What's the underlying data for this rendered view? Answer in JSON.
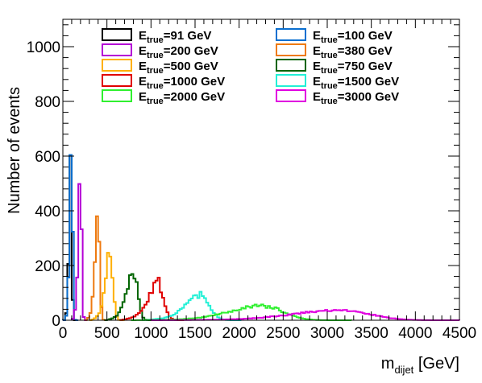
{
  "chart_data": {
    "type": "histogram",
    "title": "",
    "xlabel": {
      "main": "m",
      "sub": "dijet",
      "unit": " [GeV]"
    },
    "ylabel": "Number of events",
    "xlim": [
      0,
      4500
    ],
    "ylim": [
      0,
      1100
    ],
    "x_ticks": [
      0,
      500,
      1000,
      1500,
      2000,
      2500,
      3000,
      3500,
      4000,
      4500
    ],
    "y_ticks": [
      0,
      200,
      400,
      600,
      800,
      1000
    ],
    "bin_width": 25,
    "grid": false,
    "legend": {
      "placement": "top",
      "columns": 2
    },
    "series": [
      {
        "label_main": "E",
        "label_sub": "true",
        "label_rest": "=91 GeV",
        "color": "#000000",
        "peak": 91,
        "width": 20,
        "height": 510,
        "lowtail": 40,
        "hightail": 0
      },
      {
        "label_main": "E",
        "label_sub": "true",
        "label_rest": "=100 GeV",
        "color": "#0a6fd0",
        "peak": 100,
        "width": 20,
        "height": 680,
        "lowtail": 60,
        "hightail": 0
      },
      {
        "label_main": "E",
        "label_sub": "true",
        "label_rest": "=200 GeV",
        "color": "#b400d6",
        "peak": 200,
        "width": 25,
        "height": 470,
        "lowtail": 40,
        "hightail": 0
      },
      {
        "label_main": "E",
        "label_sub": "true",
        "label_rest": "=380 GeV",
        "color": "#ee7a10",
        "peak": 400,
        "width": 35,
        "height": 335,
        "lowtail": 35,
        "hightail": 0
      },
      {
        "label_main": "E",
        "label_sub": "true",
        "label_rest": "=500 GeV",
        "color": "#ffb000",
        "peak": 540,
        "width": 55,
        "height": 230,
        "lowtail": 30,
        "hightail": 0
      },
      {
        "label_main": "E",
        "label_sub": "true",
        "label_rest": "=750 GeV",
        "color": "#006400",
        "peak": 810,
        "width": 80,
        "height": 155,
        "lowtail": 25,
        "hightail": 0
      },
      {
        "label_main": "E",
        "label_sub": "true",
        "label_rest": "=1000 GeV",
        "color": "#e00000",
        "peak": 1090,
        "width": 110,
        "height": 115,
        "lowtail": 25,
        "hightail": 0
      },
      {
        "label_main": "E",
        "label_sub": "true",
        "label_rest": "=1500 GeV",
        "color": "#22f0d6",
        "peak": 1580,
        "width": 170,
        "height": 80,
        "lowtail": 15,
        "hightail": 0
      },
      {
        "label_main": "E",
        "label_sub": "true",
        "label_rest": "=2000 GeV",
        "color": "#30f030",
        "peak": 2300,
        "width": 380,
        "height": 50,
        "lowtail": 5,
        "hightail": 0
      },
      {
        "label_main": "E",
        "label_sub": "true",
        "label_rest": "=3000 GeV",
        "color": "#e000e0",
        "peak": 3200,
        "width": 550,
        "height": 35,
        "lowtail": 3,
        "hightail": 0
      }
    ]
  }
}
